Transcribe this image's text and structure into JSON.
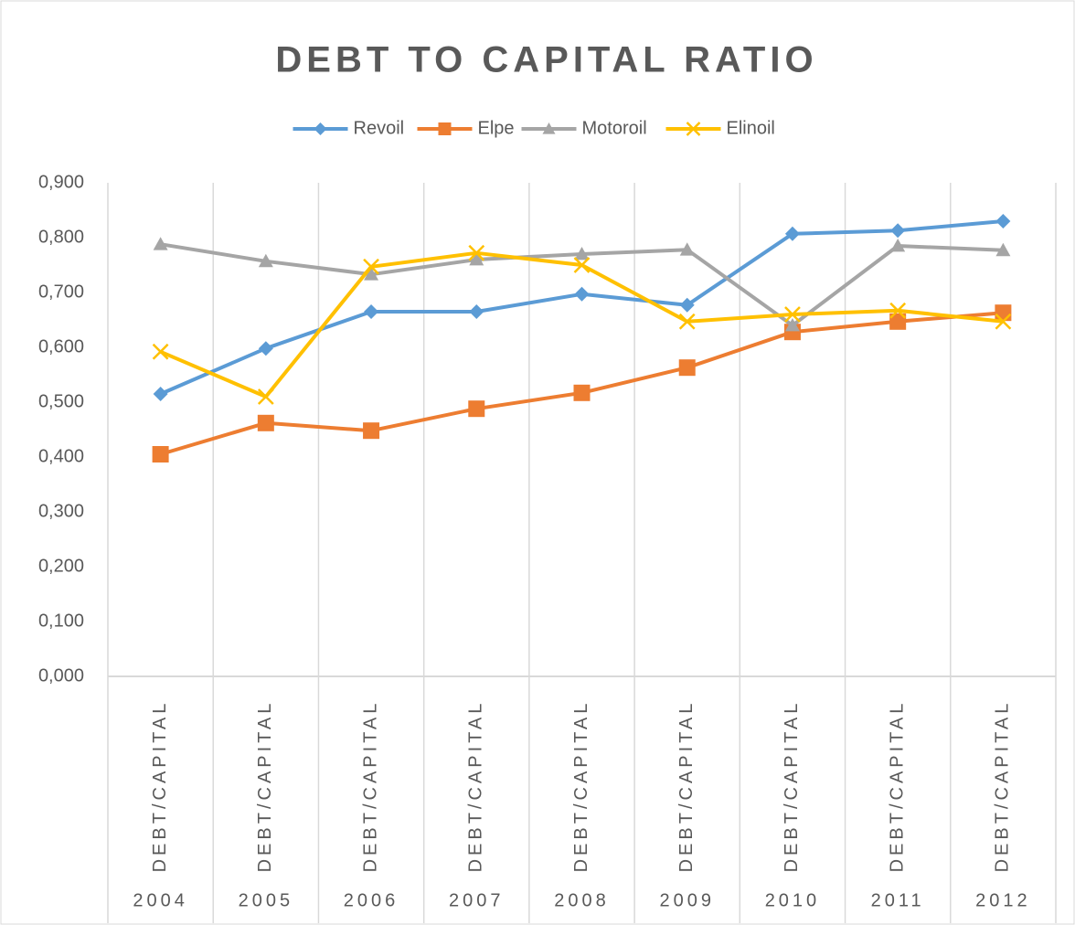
{
  "chart_data": {
    "type": "line",
    "title": "DEBT TO CAPITAL RATIO",
    "categories": [
      "2004",
      "2005",
      "2006",
      "2007",
      "2008",
      "2009",
      "2010",
      "2011",
      "2012"
    ],
    "subcategories": [
      "DEBT/CAPITAL",
      "DEBT/CAPITAL",
      "DEBT/CAPITAL",
      "DEBT/CAPITAL",
      "DEBT/CAPITAL",
      "DEBT/CAPITAL",
      "DEBT/CAPITAL",
      "DEBT/CAPITAL",
      "DEBT/CAPITAL"
    ],
    "series": [
      {
        "name": "Revoil",
        "color": "#5b9bd5",
        "marker": "diamond",
        "values": [
          0.515,
          0.598,
          0.665,
          0.665,
          0.697,
          0.677,
          0.807,
          0.813,
          0.83
        ]
      },
      {
        "name": "Elpe",
        "color": "#ed7d31",
        "marker": "square",
        "values": [
          0.405,
          0.462,
          0.448,
          0.488,
          0.517,
          0.563,
          0.628,
          0.647,
          0.663
        ]
      },
      {
        "name": "Motoroil",
        "color": "#a5a5a5",
        "marker": "triangle",
        "values": [
          0.788,
          0.757,
          0.733,
          0.76,
          0.77,
          0.778,
          0.64,
          0.785,
          0.777
        ]
      },
      {
        "name": "Elinoil",
        "color": "#ffc000",
        "marker": "x",
        "values": [
          0.592,
          0.51,
          0.747,
          0.772,
          0.75,
          0.647,
          0.66,
          0.667,
          0.647
        ]
      }
    ],
    "ylim": [
      0,
      0.9
    ],
    "yticks": [
      {
        "value": 0,
        "label": "0,000"
      },
      {
        "value": 0.1,
        "label": "0,100"
      },
      {
        "value": 0.2,
        "label": "0,200"
      },
      {
        "value": 0.3,
        "label": "0,300"
      },
      {
        "value": 0.4,
        "label": "0,400"
      },
      {
        "value": 0.5,
        "label": "0,500"
      },
      {
        "value": 0.6,
        "label": "0,600"
      },
      {
        "value": 0.7,
        "label": "0,700"
      },
      {
        "value": 0.8,
        "label": "0,800"
      },
      {
        "value": 0.9,
        "label": "0,900"
      }
    ],
    "legend": "top",
    "grid": "vertical"
  }
}
